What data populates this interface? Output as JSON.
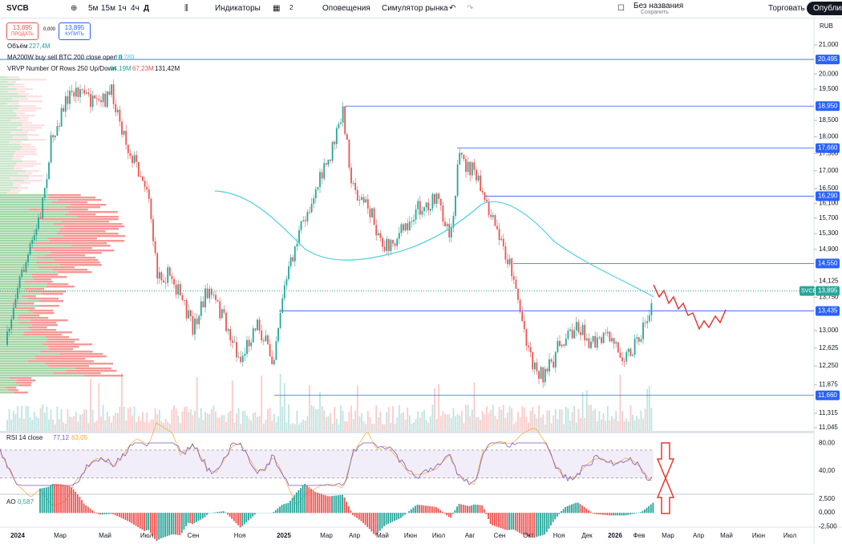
{
  "toolbar": {
    "symbol": "SVCB",
    "intervals": [
      "5м",
      "15м",
      "1ч",
      "4ч",
      "Д"
    ],
    "indicators": "Индикаторы",
    "layout_count": "2",
    "alerts": "Оповещения",
    "replay": "Симулятор рынка",
    "layout_name": "Без названия",
    "save": "Сохранить",
    "trade": "Торговать",
    "publish": "Опубликовать"
  },
  "order_panel": {
    "sell_price": "13,895",
    "sell": "ПРОДАТЬ",
    "spread": "0,000",
    "buy_price": "13,895",
    "buy": "КУПИТЬ"
  },
  "legends": {
    "volume": {
      "label": "Объём",
      "value": "227,4M"
    },
    "ma": {
      "label": "MA200W buy sell BTC 200 close open 0",
      "value": "13,789"
    },
    "vrvp": {
      "label": "VRVP Number Of Rows 250 Up/Down",
      "up": "64,19M",
      "down": "67,23M",
      "total": "131,42M"
    },
    "rsi": {
      "label": "RSI 14 close",
      "value": "77,12",
      "ma": "63,05"
    },
    "ao": {
      "label": "AO",
      "value": "0,587"
    }
  },
  "price_axis": {
    "currency": "RUB",
    "ylim": [
      11045,
      21000
    ],
    "log": true,
    "ticks": [
      {
        "value": 21000,
        "label": "21,000"
      },
      {
        "value": 20000,
        "label": "20,000"
      },
      {
        "value": 19500,
        "label": "19,500"
      },
      {
        "value": 18500,
        "label": "18,500"
      },
      {
        "value": 18000,
        "label": "18,000"
      },
      {
        "value": 17500,
        "label": "17,500"
      },
      {
        "value": 17000,
        "label": "17,000"
      },
      {
        "value": 16500,
        "label": "16,500"
      },
      {
        "value": 16100,
        "label": "16,100"
      },
      {
        "value": 15700,
        "label": "15,700"
      },
      {
        "value": 15300,
        "label": "15,300"
      },
      {
        "value": 14900,
        "label": "14,900"
      },
      {
        "value": 14125,
        "label": "14,125"
      },
      {
        "value": 13750,
        "label": "13,750"
      },
      {
        "value": 13000,
        "label": "13,000"
      },
      {
        "value": 12625,
        "label": "12,625"
      },
      {
        "value": 12250,
        "label": "12,250"
      },
      {
        "value": 11875,
        "label": "11,875"
      },
      {
        "value": 11315,
        "label": "11,315"
      },
      {
        "value": 11045,
        "label": "11,045"
      }
    ],
    "levels": [
      {
        "value": 20495,
        "label": "20,495"
      },
      {
        "value": 18950,
        "label": "18,950"
      },
      {
        "value": 17660,
        "label": "17,660"
      },
      {
        "value": 16290,
        "label": "16,290"
      },
      {
        "value": 14550,
        "label": "14,550"
      },
      {
        "value": 13435,
        "label": "13,435"
      },
      {
        "value": 11660,
        "label": "11,660"
      }
    ],
    "last": {
      "symbol": "SVCB",
      "value": 13895,
      "label": "13,895"
    }
  },
  "rsi_axis": {
    "ylim": [
      8,
      94
    ],
    "ticks": [
      {
        "value": 80,
        "label": "80,00"
      },
      {
        "value": 40,
        "label": "40,00"
      }
    ],
    "bands": [
      70,
      30
    ]
  },
  "ao_axis": {
    "ylim": [
      -2.6,
      3.2
    ],
    "ticks": [
      {
        "value": 2.5,
        "label": "2,500"
      },
      {
        "value": 0,
        "label": "0,000"
      },
      {
        "value": -2.5,
        "label": "-2,500"
      }
    ]
  },
  "time_axis": {
    "labels": [
      "2024",
      "Мар",
      "Май",
      "Июл",
      "Сен",
      "Ноя",
      "2025",
      "Мар",
      "Апр",
      "Май",
      "Июн",
      "Июл",
      "Авг",
      "Сен",
      "Окт",
      "Ноя",
      "Дек",
      "2026",
      "Фев",
      "Мар",
      "Апр",
      "Май",
      "Июн",
      "Июл"
    ]
  }
}
